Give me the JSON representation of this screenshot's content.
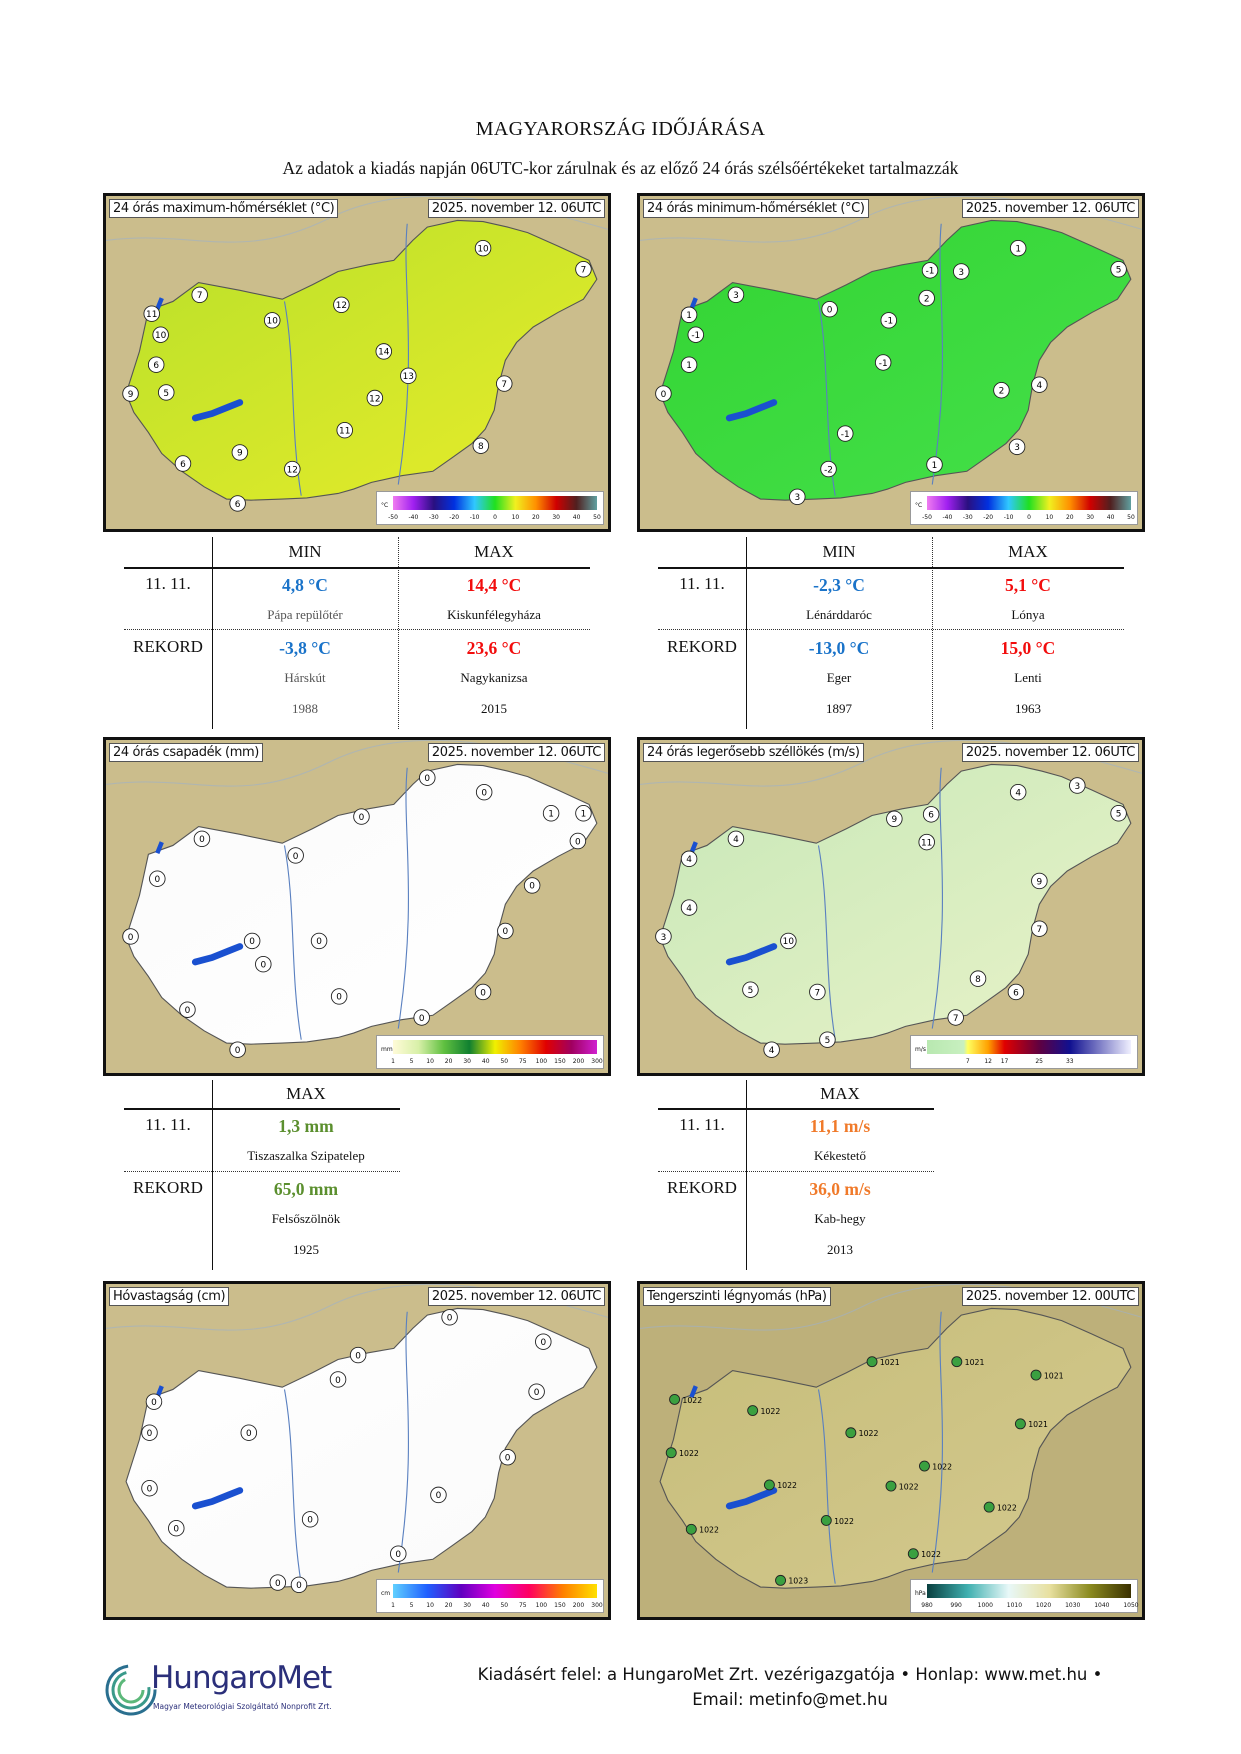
{
  "header": {
    "title": "MAGYARORSZÁG IDŐJÁRÁSA",
    "subtitle": "Az adatok a kiadás napján 06UTC-kor zárulnak és az előző 24 órás szélsőértékeket tartalmazzák"
  },
  "maps": [
    {
      "title": "24 órás maximum-hőmérséklet (°C)",
      "date": "2025. november 12. 06UTC",
      "unit": "°C",
      "ticks": [
        "-50",
        "-40",
        "-30",
        "-20",
        "-10",
        "0",
        "10",
        "20",
        "30",
        "40",
        "50"
      ],
      "stations": [
        "11",
        "10",
        "6",
        "9",
        "5",
        "6",
        "7",
        "10",
        "12",
        "14",
        "13",
        "11",
        "12",
        "10",
        "7",
        "7",
        "8",
        "6",
        "9",
        "12"
      ]
    },
    {
      "title": "24 órás minimum-hőmérséklet (°C)",
      "date": "2025. november 12. 06UTC",
      "unit": "°C",
      "ticks": [
        "-50",
        "-40",
        "-30",
        "-20",
        "-10",
        "0",
        "10",
        "20",
        "30",
        "40",
        "50"
      ],
      "stations": [
        "1",
        "-1",
        "1",
        "0",
        "3",
        "0",
        "-1",
        "-1",
        "2",
        "-1",
        "3",
        "1",
        "5",
        "2",
        "3",
        "-1",
        "-2",
        "3",
        "1",
        "4"
      ]
    },
    {
      "title": "24 órás csapadék (mm)",
      "date": "2025. november 12. 06UTC",
      "unit": "mm",
      "ticks": [
        "1",
        "5",
        "10",
        "20",
        "30",
        "40",
        "50",
        "75",
        "100",
        "150",
        "200",
        "300"
      ],
      "stations": [
        "0",
        "0",
        "0",
        "0",
        "0",
        "0",
        "0",
        "0",
        "0",
        "1",
        "1",
        "0",
        "0",
        "0",
        "0",
        "0",
        "0",
        "0",
        "0",
        "0"
      ]
    },
    {
      "title": "24 órás legerősebb széllökés (m/s)",
      "date": "2025. november 12. 06UTC",
      "unit": "m/s",
      "ticks": [
        "7",
        "12",
        "17",
        "25",
        "33"
      ],
      "stations": [
        "4",
        "4",
        "4",
        "3",
        "5",
        "10",
        "11",
        "9",
        "6",
        "4",
        "3",
        "5",
        "9",
        "7",
        "6",
        "8",
        "7",
        "5",
        "4",
        "7"
      ]
    },
    {
      "title": "Hóvastagság (cm)",
      "date": "2025. november 12. 06UTC",
      "unit": "cm",
      "ticks": [
        "1",
        "5",
        "10",
        "20",
        "30",
        "40",
        "50",
        "75",
        "100",
        "150",
        "200",
        "300"
      ],
      "stations": [
        "0",
        "0",
        "0",
        "0",
        "0",
        "0",
        "0",
        "0",
        "0",
        "0",
        "0",
        "0",
        "0",
        "0",
        "0",
        "0"
      ]
    },
    {
      "title": "Tengerszinti légnyomás (hPa)",
      "date": "2025. november 12. 00UTC",
      "unit": "hPa",
      "ticks": [
        "980",
        "990",
        "1000",
        "1010",
        "1020",
        "1030",
        "1040",
        "1050"
      ],
      "stations": [
        "1021",
        "1021",
        "1021",
        "1022",
        "1022",
        "1022",
        "1022",
        "1022",
        "1022",
        "1022",
        "1021",
        "1022",
        "1022",
        "1023",
        "1022",
        "1022"
      ]
    }
  ],
  "tables": {
    "tmax": {
      "h_min": "MIN",
      "h_max": "MAX",
      "row1_label": "11. 11.",
      "min_val": "4,8 °C",
      "min_place": "Pápa repülőtér",
      "max_val": "14,4 °C",
      "max_place": "Kiskunfélegyháza",
      "row2_label": "REKORD",
      "rec_min_val": "-3,8 °C",
      "rec_min_place": "Hárskút",
      "rec_min_year": "1988",
      "rec_max_val": "23,6 °C",
      "rec_max_place": "Nagykanizsa",
      "rec_max_year": "2015"
    },
    "tmin": {
      "h_min": "MIN",
      "h_max": "MAX",
      "row1_label": "11. 11.",
      "min_val": "-2,3 °C",
      "min_place": "Lénárddaróc",
      "max_val": "5,1 °C",
      "max_place": "Lónya",
      "row2_label": "REKORD",
      "rec_min_val": "-13,0 °C",
      "rec_min_place": "Eger",
      "rec_min_year": "1897",
      "rec_max_val": "15,0 °C",
      "rec_max_place": "Lenti",
      "rec_max_year": "1963"
    },
    "precip": {
      "h_max": "MAX",
      "row1_label": "11. 11.",
      "max_val": "1,3 mm",
      "max_place": "Tiszaszalka Szipatelep",
      "row2_label": "REKORD",
      "rec_max_val": "65,0 mm",
      "rec_max_place": "Felsőszölnök",
      "rec_max_year": "1925"
    },
    "wind": {
      "h_max": "MAX",
      "row1_label": "11. 11.",
      "max_val": "11,1 m/s",
      "max_place": "Kékestető",
      "row2_label": "REKORD",
      "rec_max_val": "36,0 m/s",
      "rec_max_place": "Kab-hegy",
      "rec_max_year": "2013"
    }
  },
  "footer": {
    "line1": "Kiadásért felel: a HungaroMet Zrt. vezérigazgatója • Honlap: www.met.hu •",
    "line2": "Email: metinfo@met.hu",
    "logo_text": "HungaroMet",
    "logo_sub": "Magyar Meteorológiai Szolgáltató Nonprofit Zrt."
  },
  "colors": {
    "blue": "#1a73c9",
    "red": "#f20d0d",
    "green": "#5b8f2e",
    "orange": "#f07a2a"
  }
}
